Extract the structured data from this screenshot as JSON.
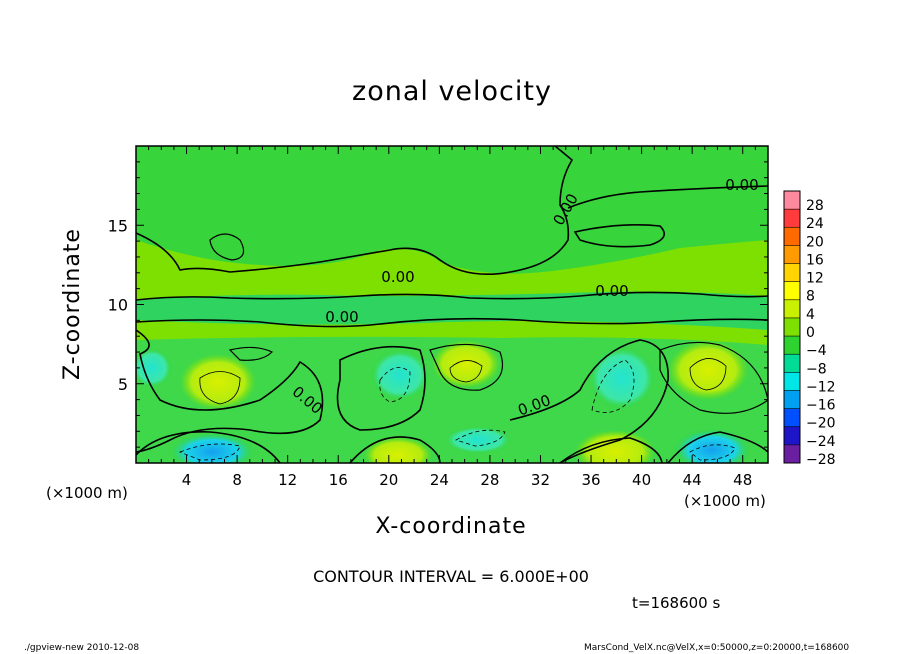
{
  "chart_data": {
    "type": "heatmap",
    "title": "zonal velocity",
    "xlabel": "X-coordinate",
    "ylabel": "Z-coordinate",
    "x_unit_label": "(×1000 m)",
    "x_ticks": [
      4,
      8,
      12,
      16,
      20,
      24,
      28,
      32,
      36,
      40,
      44,
      48
    ],
    "y_ticks": [
      5,
      10,
      15
    ],
    "xlim": [
      0,
      50
    ],
    "ylim": [
      0,
      20
    ],
    "colorbar": {
      "levels": [
        "28",
        "24",
        "20",
        "16",
        "12",
        "8",
        "4",
        "0",
        "−4",
        "−8",
        "−12",
        "−16",
        "−20",
        "−24",
        "−28"
      ],
      "colors": [
        "#ff8aa0",
        "#ff3b3b",
        "#ff6a00",
        "#ff9a00",
        "#ffd400",
        "#ffff00",
        "#c8f000",
        "#7ee000",
        "#2fd32f",
        "#00dc96",
        "#00e6e6",
        "#00a0f0",
        "#0050ff",
        "#1e14c8",
        "#6a1ea0"
      ]
    },
    "contour_labels": [
      "0.00",
      "0.00",
      "0.00",
      "0.00",
      "0.00",
      "0.00",
      "0.00"
    ],
    "contour_interval": "CONTOUR INTERVAL = 6.000E+00"
  },
  "time": "t=168600 s",
  "footer": {
    "left": "./gpview-new   2010-12-08",
    "right": "MarsCond_VelX.nc@VelX,x=0:50000,z=0:20000,t=168600"
  }
}
